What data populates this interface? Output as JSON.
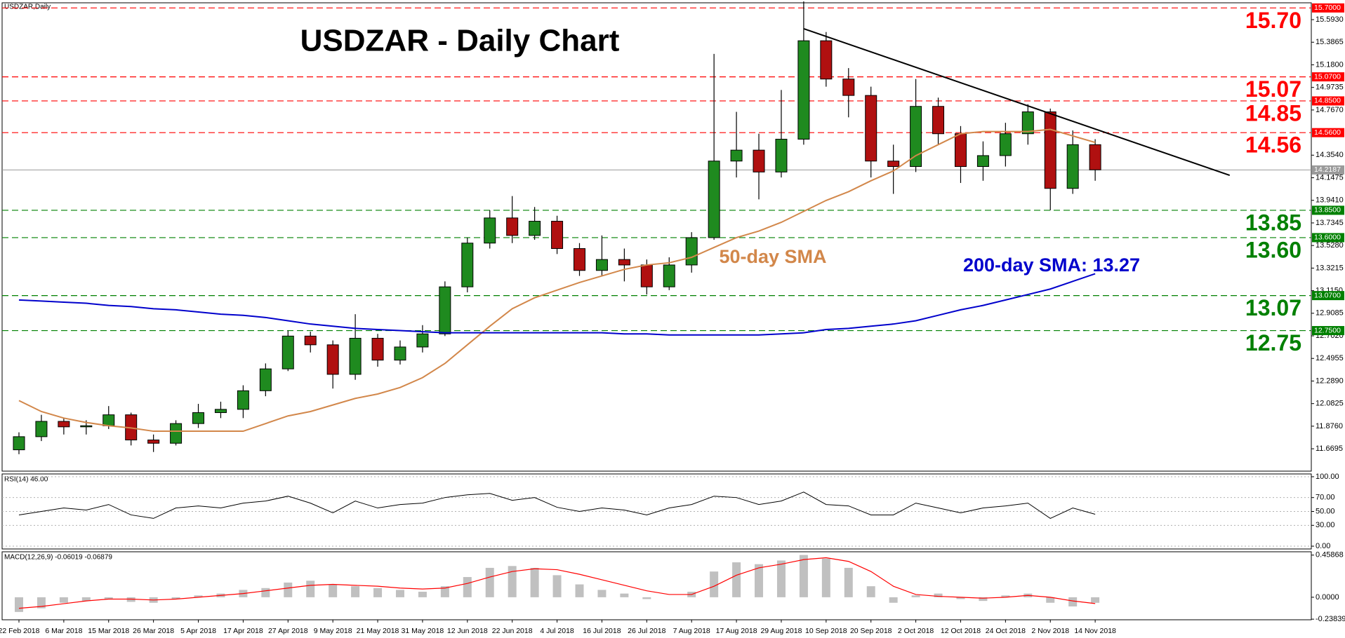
{
  "chart_data": [
    {
      "type": "candlestick",
      "title": "USDZAR - Daily Chart",
      "label": "USDZAR,Daily",
      "categories": [
        "22 Feb 2018",
        null,
        "6 Mar 2018",
        null,
        "15 Mar 2018",
        null,
        "26 Mar 2018",
        null,
        "5 Apr 2018",
        null,
        "17 Apr 2018",
        null,
        "27 Apr 2018",
        null,
        "9 May 2018",
        null,
        "21 May 2018",
        null,
        "31 May 2018",
        null,
        "12 Jun 2018",
        null,
        "22 Jun 2018",
        null,
        "4 Jul 2018",
        null,
        "16 Jul 2018",
        null,
        "26 Jul 2018",
        null,
        "7 Aug 2018",
        null,
        "17 Aug 2018",
        null,
        "29 Aug 2018",
        null,
        "10 Sep 2018",
        null,
        "20 Sep 2018",
        null,
        "2 Oct 2018",
        null,
        "12 Oct 2018",
        null,
        "24 Oct 2018",
        null,
        "2 Nov 2018",
        null,
        "14 Nov 2018"
      ],
      "open": [
        11.66,
        11.78,
        11.92,
        11.87,
        11.88,
        11.98,
        11.75,
        11.72,
        11.9,
        12.0,
        12.03,
        12.2,
        12.4,
        12.7,
        12.62,
        12.35,
        12.68,
        12.48,
        12.6,
        12.72,
        13.15,
        13.55,
        13.78,
        13.62,
        13.75,
        13.5,
        13.3,
        13.4,
        13.35,
        13.15,
        13.35,
        13.6,
        14.3,
        14.4,
        14.2,
        14.5,
        15.4,
        15.05,
        14.9,
        14.3,
        14.25,
        14.8,
        14.55,
        14.25,
        14.35,
        14.55,
        14.75,
        14.05,
        14.45
      ],
      "high": [
        11.82,
        11.98,
        11.95,
        11.93,
        12.06,
        12.0,
        11.8,
        11.93,
        12.08,
        12.1,
        12.25,
        12.45,
        12.75,
        12.74,
        12.66,
        12.9,
        12.72,
        12.66,
        12.8,
        13.2,
        13.6,
        13.85,
        13.98,
        13.88,
        13.8,
        13.55,
        13.62,
        13.5,
        13.4,
        13.42,
        13.65,
        15.28,
        14.75,
        14.55,
        14.95,
        15.76,
        15.48,
        15.15,
        14.98,
        14.45,
        15.05,
        14.88,
        14.62,
        14.48,
        14.65,
        14.82,
        14.78,
        14.58,
        14.5
      ],
      "low": [
        11.62,
        11.74,
        11.8,
        11.8,
        11.85,
        11.7,
        11.64,
        11.7,
        11.86,
        11.95,
        11.95,
        12.15,
        12.38,
        12.55,
        12.22,
        12.3,
        12.42,
        12.44,
        12.55,
        12.7,
        13.1,
        13.5,
        13.55,
        13.58,
        13.45,
        13.25,
        13.25,
        13.2,
        13.08,
        13.12,
        13.28,
        13.58,
        14.15,
        13.95,
        14.15,
        14.45,
        14.98,
        14.7,
        14.15,
        14.0,
        14.2,
        14.45,
        14.1,
        14.12,
        14.25,
        14.45,
        13.85,
        14.0,
        14.12
      ],
      "close": [
        11.78,
        11.92,
        11.87,
        11.88,
        11.98,
        11.75,
        11.72,
        11.9,
        12.0,
        12.03,
        12.2,
        12.4,
        12.7,
        12.62,
        12.35,
        12.68,
        12.48,
        12.6,
        12.72,
        13.15,
        13.55,
        13.78,
        13.62,
        13.75,
        13.5,
        13.3,
        13.4,
        13.35,
        13.15,
        13.35,
        13.6,
        14.3,
        14.4,
        14.2,
        14.5,
        15.4,
        15.05,
        14.9,
        14.3,
        14.25,
        14.8,
        14.55,
        14.25,
        14.35,
        14.55,
        14.75,
        14.05,
        14.45,
        14.22
      ],
      "up_color": "#1f8a1f",
      "down_color": "#b01010",
      "ylim": [
        11.465,
        15.747
      ],
      "yticks": [
        {
          "value": 15.593,
          "label": "15.5930"
        },
        {
          "value": 15.3865,
          "label": "15.3865"
        },
        {
          "value": 15.18,
          "label": "15.1800"
        },
        {
          "value": 14.9735,
          "label": "14.9735"
        },
        {
          "value": 14.767,
          "label": "14.7670"
        },
        {
          "value": 14.354,
          "label": "14.3540"
        },
        {
          "value": 14.1475,
          "label": "14.1475"
        },
        {
          "value": 13.941,
          "label": "13.9410"
        },
        {
          "value": 13.7345,
          "label": "13.7345"
        },
        {
          "value": 13.528,
          "label": "13.5280"
        },
        {
          "value": 13.3215,
          "label": "13.3215"
        },
        {
          "value": 13.115,
          "label": "13.1150"
        },
        {
          "value": 12.9085,
          "label": "12.9085"
        },
        {
          "value": 12.702,
          "label": "12.7020"
        },
        {
          "value": 12.4955,
          "label": "12.4955"
        },
        {
          "value": 12.289,
          "label": "12.2890"
        },
        {
          "value": 12.0825,
          "label": "12.0825"
        },
        {
          "value": 11.876,
          "label": "11.8760"
        },
        {
          "value": 11.6695,
          "label": "11.6695"
        }
      ],
      "series": [
        {
          "name": "50-day SMA",
          "color": "#d2874a",
          "values": [
            12.11,
            12.01,
            11.95,
            11.91,
            11.88,
            11.86,
            11.83,
            11.83,
            11.83,
            11.83,
            11.83,
            11.9,
            11.97,
            12.01,
            12.07,
            12.13,
            12.17,
            12.23,
            12.32,
            12.45,
            12.62,
            12.79,
            12.95,
            13.05,
            13.12,
            13.19,
            13.25,
            13.31,
            13.35,
            13.37,
            13.42,
            13.51,
            13.6,
            13.66,
            13.74,
            13.84,
            13.94,
            14.02,
            14.12,
            14.21,
            14.35,
            14.45,
            14.55,
            14.57,
            14.57,
            14.57,
            14.59,
            14.53,
            14.47
          ]
        },
        {
          "name": "200-day SMA: 13.27",
          "color": "#0000cc",
          "values": [
            13.03,
            13.02,
            13.01,
            13.0,
            12.98,
            12.97,
            12.95,
            12.94,
            12.92,
            12.9,
            12.89,
            12.87,
            12.84,
            12.81,
            12.79,
            12.77,
            12.76,
            12.75,
            12.74,
            12.73,
            12.73,
            12.73,
            12.73,
            12.73,
            12.73,
            12.73,
            12.73,
            12.72,
            12.72,
            12.71,
            12.71,
            12.71,
            12.71,
            12.71,
            12.72,
            12.73,
            12.76,
            12.77,
            12.79,
            12.81,
            12.84,
            12.89,
            12.94,
            12.98,
            13.03,
            13.08,
            13.13,
            13.2,
            13.27
          ]
        }
      ],
      "trendline": {
        "color": "#000000",
        "x": [
          35,
          54
        ],
        "values": [
          15.51,
          14.17
        ]
      },
      "levels": [
        {
          "value": 15.7,
          "label": "15.70",
          "axis_label": "15.7000",
          "color": "#ff0000"
        },
        {
          "value": 15.07,
          "label": "15.07",
          "axis_label": "15.0700",
          "color": "#ff0000"
        },
        {
          "value": 14.85,
          "label": "14.85",
          "axis_label": "14.8500",
          "color": "#ff0000"
        },
        {
          "value": 14.56,
          "label": "14.56",
          "axis_label": "14.5600",
          "color": "#ff0000"
        },
        {
          "value": 13.85,
          "label": "13.85",
          "axis_label": "13.8500",
          "color": "#008000"
        },
        {
          "value": 13.6,
          "label": "13.60",
          "axis_label": "13.6000",
          "color": "#008000"
        },
        {
          "value": 13.07,
          "label": "13.07",
          "axis_label": "13.0700",
          "color": "#008000"
        },
        {
          "value": 12.75,
          "label": "12.75",
          "axis_label": "12.7500",
          "color": "#008000"
        }
      ],
      "last_price": {
        "value": 14.2187,
        "axis_label": "14.2187",
        "color": "#9a9a9a"
      }
    },
    {
      "type": "line",
      "label": "RSI(14) 46.00",
      "ylim": [
        -4,
        104
      ],
      "yticks": [
        {
          "value": 100,
          "label": "100.00"
        },
        {
          "value": 70,
          "label": "70.00"
        },
        {
          "value": 50,
          "label": "50.00"
        },
        {
          "value": 30,
          "label": "30.00"
        },
        {
          "value": 0,
          "label": "0.00"
        }
      ],
      "series": [
        {
          "color": "#000000",
          "values": [
            45,
            50,
            55,
            52,
            60,
            45,
            40,
            55,
            58,
            55,
            62,
            65,
            72,
            62,
            48,
            65,
            55,
            60,
            62,
            70,
            74,
            76,
            66,
            70,
            56,
            50,
            55,
            52,
            45,
            55,
            60,
            72,
            70,
            60,
            65,
            78,
            60,
            58,
            45,
            45,
            62,
            55,
            48,
            55,
            58,
            62,
            40,
            55,
            46
          ]
        }
      ]
    },
    {
      "type": "macd",
      "label": "MACD(12,26,9) -0.06019 -0.06879",
      "ylim": [
        -0.245,
        0.495
      ],
      "yticks": [
        0.45868,
        {
          "value": 0,
          "label": "0.0000"
        },
        -0.23839
      ],
      "series": [
        {
          "color": "#c0c0c0",
          "values": [
            -0.16,
            -0.12,
            -0.06,
            -0.04,
            -0.02,
            -0.05,
            -0.06,
            -0.02,
            0.02,
            0.04,
            0.08,
            0.1,
            0.16,
            0.18,
            0.14,
            0.12,
            0.1,
            0.08,
            0.06,
            0.12,
            0.22,
            0.32,
            0.34,
            0.32,
            0.24,
            0.14,
            0.08,
            0.04,
            -0.02,
            0.0,
            0.06,
            0.28,
            0.38,
            0.36,
            0.4,
            0.46,
            0.42,
            0.32,
            0.12,
            -0.06,
            0.02,
            0.04,
            -0.02,
            -0.04,
            0.02,
            0.04,
            -0.06,
            -0.1,
            -0.06019
          ]
        },
        {
          "color": "#ff0000",
          "values": [
            -0.12,
            -0.1,
            -0.07,
            -0.04,
            -0.02,
            -0.02,
            -0.03,
            -0.02,
            0.0,
            0.02,
            0.04,
            0.07,
            0.1,
            0.13,
            0.14,
            0.13,
            0.12,
            0.1,
            0.09,
            0.1,
            0.15,
            0.22,
            0.28,
            0.31,
            0.3,
            0.25,
            0.19,
            0.13,
            0.07,
            0.03,
            0.03,
            0.12,
            0.24,
            0.32,
            0.36,
            0.41,
            0.43,
            0.39,
            0.28,
            0.12,
            0.03,
            0.01,
            0.0,
            -0.01,
            0.0,
            0.02,
            0.0,
            -0.04,
            -0.06879
          ]
        }
      ]
    }
  ]
}
